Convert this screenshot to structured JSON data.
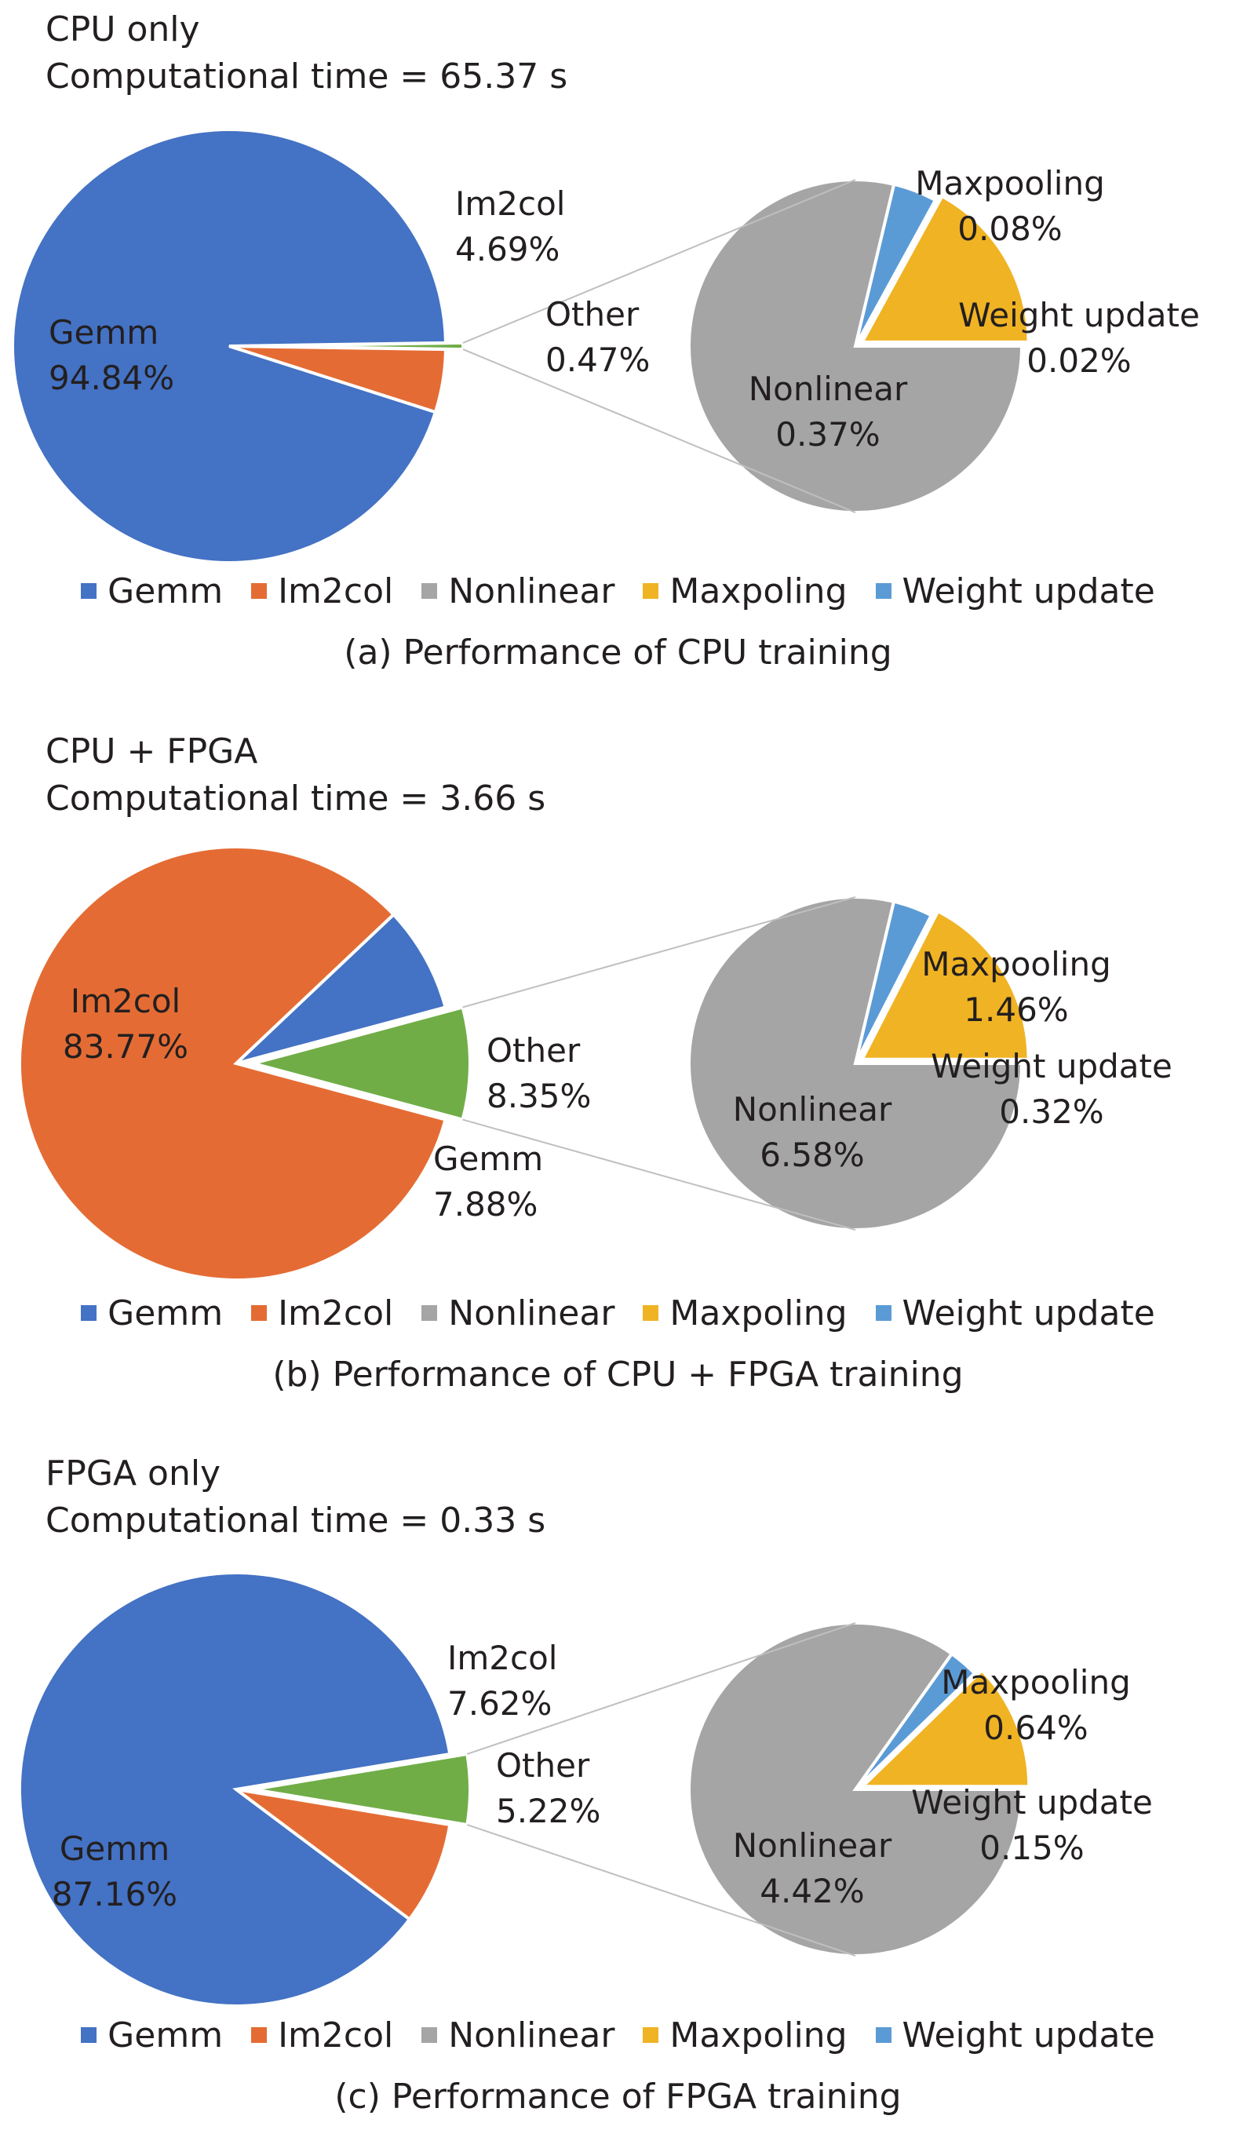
{
  "chart_data": [
    {
      "type": "pie",
      "panel_label": "CPU only",
      "time_label": "Computational time = 65.37 s",
      "caption": "(a) Performance of CPU training",
      "main": [
        {
          "name": "Gemm",
          "value": 94.84,
          "label": "94.84%"
        },
        {
          "name": "Im2col",
          "value": 4.69,
          "label": "4.69%"
        },
        {
          "name": "Other",
          "value": 0.47,
          "label": "0.47%"
        }
      ],
      "sub": [
        {
          "name": "Maxpooling",
          "value": 0.08,
          "label": "0.08%"
        },
        {
          "name": "Weight update",
          "value": 0.02,
          "label": "0.02%"
        },
        {
          "name": "Nonlinear",
          "value": 0.37,
          "label": "0.37%"
        }
      ]
    },
    {
      "type": "pie",
      "panel_label": "CPU + FPGA",
      "time_label": "Computational time = 3.66 s",
      "caption": "(b) Performance of CPU + FPGA training",
      "main": [
        {
          "name": "Im2col",
          "value": 83.77,
          "label": "83.77%"
        },
        {
          "name": "Other",
          "value": 8.35,
          "label": "8.35%"
        },
        {
          "name": "Gemm",
          "value": 7.88,
          "label": "7.88%"
        }
      ],
      "sub": [
        {
          "name": "Maxpooling",
          "value": 1.46,
          "label": "1.46%"
        },
        {
          "name": "Weight update",
          "value": 0.32,
          "label": "0.32%"
        },
        {
          "name": "Nonlinear",
          "value": 6.58,
          "label": "6.58%"
        }
      ]
    },
    {
      "type": "pie",
      "panel_label": "FPGA only",
      "time_label": "Computational time = 0.33 s",
      "caption": "(c) Performance of FPGA training",
      "main": [
        {
          "name": "Gemm",
          "value": 87.16,
          "label": "87.16%"
        },
        {
          "name": "Im2col",
          "value": 7.62,
          "label": "7.62%"
        },
        {
          "name": "Other",
          "value": 5.22,
          "label": "5.22%"
        }
      ],
      "sub": [
        {
          "name": "Maxpooling",
          "value": 0.64,
          "label": "0.64%"
        },
        {
          "name": "Weight update",
          "value": 0.15,
          "label": "0.15%"
        },
        {
          "name": "Nonlinear",
          "value": 4.42,
          "label": "4.42%"
        }
      ]
    }
  ],
  "legend": [
    {
      "name": "Gemm",
      "color": "#4472c4"
    },
    {
      "name": "Im2col",
      "color": "#e46c34"
    },
    {
      "name": "Nonlinear",
      "color": "#a5a5a5"
    },
    {
      "name": "Maxpoling",
      "color": "#f0b323"
    },
    {
      "name": "Weight update",
      "color": "#5b9bd5"
    }
  ],
  "colors": {
    "Gemm": "#4472c4",
    "Im2col": "#e46c34",
    "Other": "#70ad47",
    "Nonlinear": "#a5a5a5",
    "Maxpooling": "#f0b323",
    "Weight update": "#5b9bd5",
    "connector": "#bfbfbf"
  }
}
